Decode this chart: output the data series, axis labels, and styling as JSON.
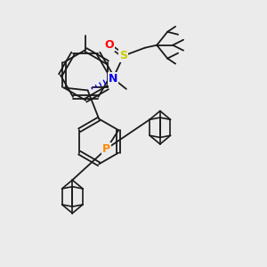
{
  "bg_color": "#ebebeb",
  "bond_color": "#1a1a1a",
  "atom_colors": {
    "O": "#ff0000",
    "S": "#cccc00",
    "N": "#0000ee",
    "P": "#ff8800",
    "C": "#1a1a1a"
  },
  "figsize": [
    3.0,
    3.0
  ],
  "dpi": 100
}
